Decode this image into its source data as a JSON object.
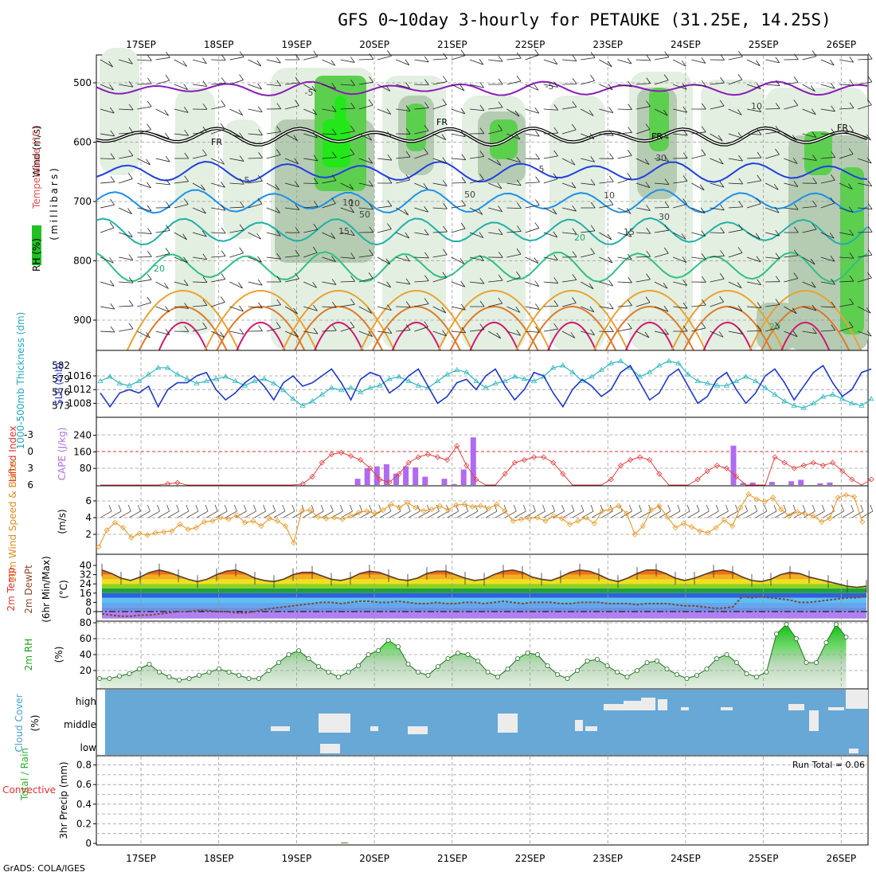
{
  "header": {
    "title": "GFS 0~10day 3-hourly for PETAUKE (31.25E, 14.25S)",
    "footer": "GrADS: COLA/IGES",
    "run_total": "Run Total = 0.06"
  },
  "chart_data": {
    "type": "meteogram",
    "dates": [
      "17SEP",
      "18SEP",
      "19SEP",
      "20SEP",
      "21SEP",
      "22SEP",
      "23SEP",
      "24SEP",
      "25SEP",
      "26SEP"
    ],
    "panels": [
      {
        "id": "upper-air",
        "ylabels": [
          "Wind (m/s)",
          "Temperature (°C)",
          "RH (%)",
          "(millibars)"
        ],
        "yticks": [
          "500",
          "600",
          "700",
          "800",
          "900"
        ],
        "temperature_contours": [
          {
            "label": "-5",
            "color": "#8a1cb8",
            "level_mb": 510
          },
          {
            "label": "0 (FR)",
            "color": "#000000",
            "level_mb": 590
          },
          {
            "label": "5",
            "color": "#2040e0",
            "level_mb": 650
          },
          {
            "label": "10",
            "color": "#1e90e8",
            "level_mb": 700
          },
          {
            "label": "15",
            "color": "#20b0a8",
            "level_mb": 750
          },
          {
            "label": "20",
            "color": "#30c080",
            "level_mb": 810
          }
        ],
        "contour_labels": [
          "-5",
          "-5",
          "FR",
          "FR",
          "FR",
          "FR",
          "5",
          "5",
          "10",
          "10",
          "15",
          "15",
          "20",
          "20",
          "20",
          "10",
          "10",
          "50",
          "50",
          "30",
          "30"
        ],
        "rh_legend": "RH (%)"
      },
      {
        "id": "slp-thickness",
        "ylabels": [
          "1000-500mb Thickness (dm)",
          "SLP (mb)"
        ],
        "thickness_ticks": [
          "582",
          "579",
          "576",
          "573"
        ],
        "slp_ticks": [
          "1016",
          "1012",
          "1008"
        ],
        "slp_values": [
          1011,
          1007,
          1011,
          1012,
          1011,
          1013,
          1007,
          1012,
          1014,
          1014,
          1016,
          1017,
          1012,
          1009,
          1011,
          1014,
          1016,
          1013,
          1009,
          1014,
          1016,
          1013,
          1014,
          1016,
          1018,
          1014,
          1009,
          1015,
          1017,
          1016,
          1011,
          1013,
          1016,
          1018,
          1013,
          1008,
          1010,
          1014,
          1015,
          1012,
          1016,
          1018,
          1013,
          1009,
          1012,
          1017,
          1016,
          1011,
          1007,
          1012,
          1015,
          1013,
          1010,
          1012,
          1017,
          1019,
          1014,
          1009,
          1011,
          1016,
          1018,
          1013,
          1008,
          1010,
          1015,
          1017,
          1012,
          1008,
          1011,
          1016,
          1018,
          1014,
          1009,
          1013,
          1017,
          1019,
          1014,
          1010,
          1012,
          1017,
          1018
        ],
        "thickness_values": [
          578.5,
          579.5,
          578.0,
          577.5,
          578.5,
          580.0,
          581.5,
          581.5,
          580.0,
          579.0,
          578.0,
          578.5,
          579.0,
          579.5,
          578.5,
          577.5,
          578.5,
          579.0,
          578.0,
          576.5,
          574.5,
          573.0,
          574.0,
          575.5,
          577.0,
          576.5,
          577.0,
          576.0,
          577.0,
          577.5,
          579.0,
          579.5,
          578.5,
          577.5,
          577.0,
          578.5,
          580.0,
          581.0,
          580.5,
          578.5,
          577.0,
          578.0,
          578.5,
          579.5,
          579.0,
          578.5,
          579.5,
          581.5,
          582.0,
          580.5,
          578.5,
          579.5,
          581.0,
          582.5,
          583.0,
          581.5,
          579.5,
          580.5,
          582.0,
          583.0,
          582.5,
          580.0,
          578.5,
          578.0,
          577.5,
          577.5,
          578.5,
          579.5,
          578.5,
          577.0,
          575.5,
          574.0,
          573.0,
          572.5,
          573.5,
          575.0,
          575.5,
          574.5,
          573.5,
          573.0,
          574.5
        ]
      },
      {
        "id": "li-cape",
        "ylabels": [
          "Lifted Index",
          "CAPE (J/kg)"
        ],
        "li_ticks": [
          "-3",
          "0",
          "3",
          "6"
        ],
        "cape_ticks": [
          "240",
          "160",
          "80"
        ],
        "lifted_index": [
          6,
          6,
          6,
          6,
          6,
          6,
          6,
          5.8,
          5.6,
          6,
          6,
          6,
          6,
          6,
          6,
          6,
          6,
          6,
          6,
          6,
          6,
          5.8,
          4.5,
          2,
          0.5,
          0.2,
          0.8,
          1.5,
          3,
          5,
          5.5,
          4,
          2,
          1,
          0.5,
          1,
          1.5,
          -1,
          2.5,
          5,
          6,
          6,
          4,
          2,
          1.5,
          1,
          1,
          2,
          4,
          6,
          6,
          6,
          6,
          5,
          2.5,
          1.5,
          1,
          1.5,
          4,
          6,
          6,
          6,
          5,
          3.5,
          2.5,
          3,
          4.5,
          6,
          6,
          6,
          1,
          2,
          3,
          2.5,
          2,
          2.5,
          2,
          3.5,
          5,
          6,
          5
        ],
        "cape_bars": [
          {
            "x_index": 26,
            "value": 30
          },
          {
            "x_index": 27,
            "value": 80
          },
          {
            "x_index": 28,
            "value": 90
          },
          {
            "x_index": 29,
            "value": 100
          },
          {
            "x_index": 30,
            "value": 55
          },
          {
            "x_index": 31,
            "value": 90
          },
          {
            "x_index": 32,
            "value": 85
          },
          {
            "x_index": 33,
            "value": 40
          },
          {
            "x_index": 35,
            "value": 30
          },
          {
            "x_index": 36,
            "value": 5
          },
          {
            "x_index": 37,
            "value": 75
          },
          {
            "x_index": 38,
            "value": 230
          },
          {
            "x_index": 65,
            "value": 190
          },
          {
            "x_index": 66,
            "value": 10
          },
          {
            "x_index": 67,
            "value": 12
          },
          {
            "x_index": 69,
            "value": 15
          },
          {
            "x_index": 71,
            "value": 18
          },
          {
            "x_index": 72,
            "value": 25
          },
          {
            "x_index": 74,
            "value": 8
          },
          {
            "x_index": 75,
            "value": 12
          }
        ]
      },
      {
        "id": "wind",
        "ylabels": [
          "10m Wind Speed & Barbs",
          "(m/s)"
        ],
        "yticks": [
          "6",
          "4",
          "2"
        ],
        "speed": [
          0.5,
          2.5,
          3.4,
          2.8,
          1.6,
          2.1,
          1.9,
          2.2,
          2.3,
          2.4,
          3.2,
          2.6,
          2.8,
          3.5,
          3.6,
          4.0,
          3.8,
          4.3,
          3.4,
          3.6,
          3.0,
          3.9,
          3.6,
          3.0,
          1.0,
          4.8,
          4.9,
          4.1,
          3.9,
          4.0,
          3.8,
          4.2,
          4.6,
          4.8,
          4.5,
          4.9,
          5.6,
          5.2,
          5.8,
          5.2,
          4.8,
          5.0,
          5.4,
          4.9,
          5.5,
          5.6,
          5.3,
          5.4,
          5.1,
          5.6,
          4.8,
          3.6,
          3.8,
          3.9,
          4.0,
          3.6,
          4.2,
          3.9,
          3.2,
          3.6,
          4.0,
          3.3,
          4.8,
          5.0,
          5.4,
          4.5,
          2.0,
          3.0,
          4.9,
          5.4,
          4.1,
          2.8,
          3.3,
          2.9,
          2.4,
          2.2,
          2.8,
          3.7,
          3.0,
          5.2,
          6.8,
          6.2,
          5.9,
          6.4,
          5.0,
          4.2,
          4.7,
          4.4,
          4.2,
          3.5,
          3.9,
          6.4,
          6.7,
          6.5,
          3.5
        ]
      },
      {
        "id": "temp",
        "ylabels": [
          "2m Temp",
          "2m DewPt",
          "(6hr Min/Max)",
          "(°C)"
        ],
        "yticks": [
          "40",
          "32",
          "24",
          "16",
          "8",
          "0"
        ],
        "temperature": [
          36,
          33,
          29,
          27,
          30,
          34,
          36,
          34,
          31,
          28,
          26,
          28,
          32,
          35,
          36,
          33,
          29,
          27,
          26,
          28,
          32,
          34,
          34,
          31,
          28,
          27,
          29,
          33,
          35,
          34,
          31,
          28,
          27,
          29,
          33,
          35,
          35,
          32,
          29,
          27,
          28,
          32,
          35,
          36,
          34,
          30,
          28,
          27,
          30,
          34,
          36,
          35,
          32,
          28,
          26,
          29,
          33,
          36,
          36,
          33,
          29,
          27,
          29,
          32,
          35,
          36,
          34,
          30,
          27,
          26,
          28,
          32,
          34,
          33,
          30,
          28,
          26,
          24,
          22,
          21,
          22
        ],
        "dewpoint": [
          -2,
          -3,
          -4,
          -4,
          -3,
          -3,
          -2,
          -1,
          0,
          0,
          1,
          1,
          0,
          0,
          -1,
          -1,
          0,
          2,
          3,
          4,
          5,
          6,
          7,
          8,
          8,
          7,
          8,
          9,
          9,
          8,
          8,
          9,
          8,
          7,
          7,
          8,
          7,
          7,
          8,
          8,
          7,
          8,
          9,
          8,
          7,
          8,
          8,
          8,
          7,
          7,
          8,
          8,
          8,
          7,
          7,
          7,
          6,
          7,
          7,
          7,
          6,
          5,
          5,
          4,
          3,
          3,
          4,
          13,
          12,
          13,
          12,
          11,
          10,
          8,
          8,
          9,
          10,
          11,
          12,
          12,
          14
        ]
      },
      {
        "id": "rh",
        "ylabels": [
          "2m RH",
          "(%)"
        ],
        "yticks": [
          "80",
          "60",
          "40",
          "20"
        ],
        "values": [
          10,
          10,
          13,
          16,
          22,
          28,
          18,
          12,
          8,
          10,
          14,
          18,
          22,
          18,
          14,
          10,
          10,
          20,
          30,
          40,
          45,
          35,
          25,
          18,
          12,
          18,
          26,
          40,
          45,
          58,
          50,
          28,
          18,
          14,
          25,
          35,
          42,
          40,
          32,
          18,
          12,
          22,
          35,
          42,
          40,
          26,
          15,
          10,
          20,
          32,
          34,
          26,
          18,
          12,
          20,
          30,
          32,
          22,
          15,
          10,
          14,
          22,
          35,
          40,
          30,
          16,
          12,
          18,
          66,
          78,
          60,
          30,
          30,
          55,
          78,
          62
        ]
      },
      {
        "id": "cloud",
        "ylabels": [
          "Cloud Cover",
          "(%)"
        ],
        "yticks": [
          "high",
          "middle",
          "low"
        ]
      },
      {
        "id": "precip",
        "ylabels": [
          "Total / Rain",
          "Convective",
          "3hr Precip (mm)"
        ],
        "yticks": [
          "0.8",
          "0.6",
          "0.4",
          "0.2",
          "0"
        ],
        "bars": [
          {
            "x_index": 25,
            "value": 0.06,
            "convective": 0.03
          }
        ]
      }
    ]
  }
}
